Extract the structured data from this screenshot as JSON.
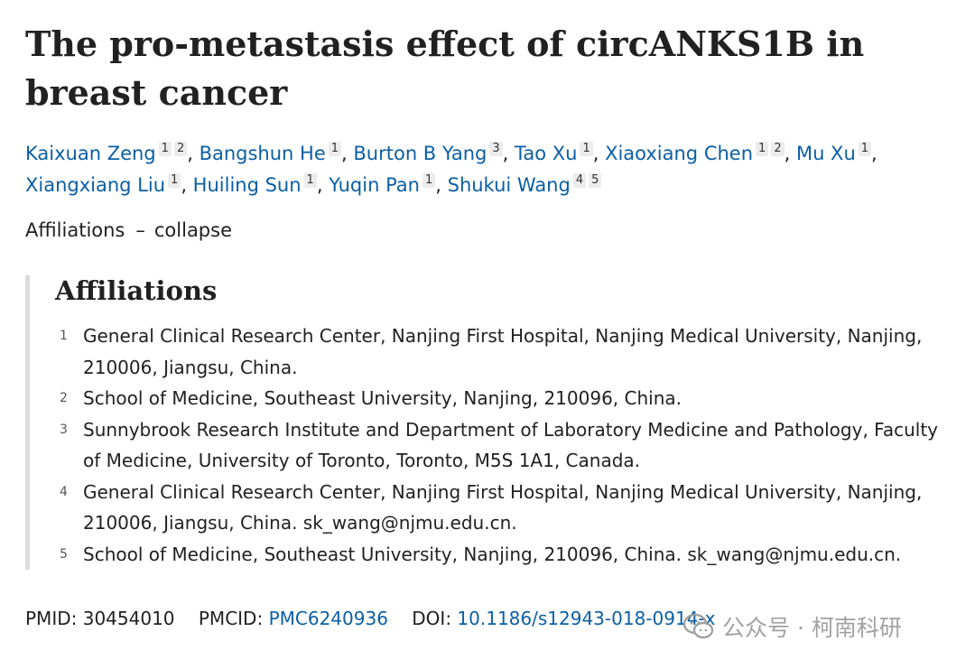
{
  "title": "The pro-metastasis effect of circANKS1B in breast cancer",
  "authors": [
    {
      "name": "Kaixuan Zeng",
      "affs": [
        "1",
        "2"
      ]
    },
    {
      "name": "Bangshun He",
      "affs": [
        "1"
      ]
    },
    {
      "name": "Burton B Yang",
      "affs": [
        "3"
      ]
    },
    {
      "name": "Tao Xu",
      "affs": [
        "1"
      ]
    },
    {
      "name": "Xiaoxiang Chen",
      "affs": [
        "1",
        "2"
      ]
    },
    {
      "name": "Mu Xu",
      "affs": [
        "1"
      ]
    },
    {
      "name": "Xiangxiang Liu",
      "affs": [
        "1"
      ]
    },
    {
      "name": "Huiling Sun",
      "affs": [
        "1"
      ]
    },
    {
      "name": "Yuqin Pan",
      "affs": [
        "1"
      ]
    },
    {
      "name": "Shukui Wang",
      "affs": [
        "4",
        "5"
      ]
    }
  ],
  "affiliations_toggle": {
    "label": "Affiliations",
    "dash": "–",
    "action": "collapse"
  },
  "affiliations": {
    "heading": "Affiliations",
    "items": [
      {
        "num": "1",
        "text": "General Clinical Research Center, Nanjing First Hospital, Nanjing Medical University, Nanjing, 210006, Jiangsu, China."
      },
      {
        "num": "2",
        "text": "School of Medicine, Southeast University, Nanjing, 210096, China."
      },
      {
        "num": "3",
        "text": "Sunnybrook Research Institute and Department of Laboratory Medicine and Pathology, Faculty of Medicine, University of Toronto, Toronto, M5S 1A1, Canada."
      },
      {
        "num": "4",
        "text": "General Clinical Research Center, Nanjing First Hospital, Nanjing Medical University, Nanjing, 210006, Jiangsu, China. sk_wang@njmu.edu.cn."
      },
      {
        "num": "5",
        "text": "School of Medicine, Southeast University, Nanjing, 210096, China. sk_wang@njmu.edu.cn."
      }
    ]
  },
  "identifiers": {
    "pmid_label": "PMID:",
    "pmid": "30454010",
    "pmcid_label": "PMCID:",
    "pmcid": "PMC6240936",
    "doi_label": "DOI:",
    "doi": "10.1186/s12943-018-0914-x"
  },
  "watermark": {
    "text": "公众号 · 柯南科研",
    "icon": "wechat-icon"
  }
}
